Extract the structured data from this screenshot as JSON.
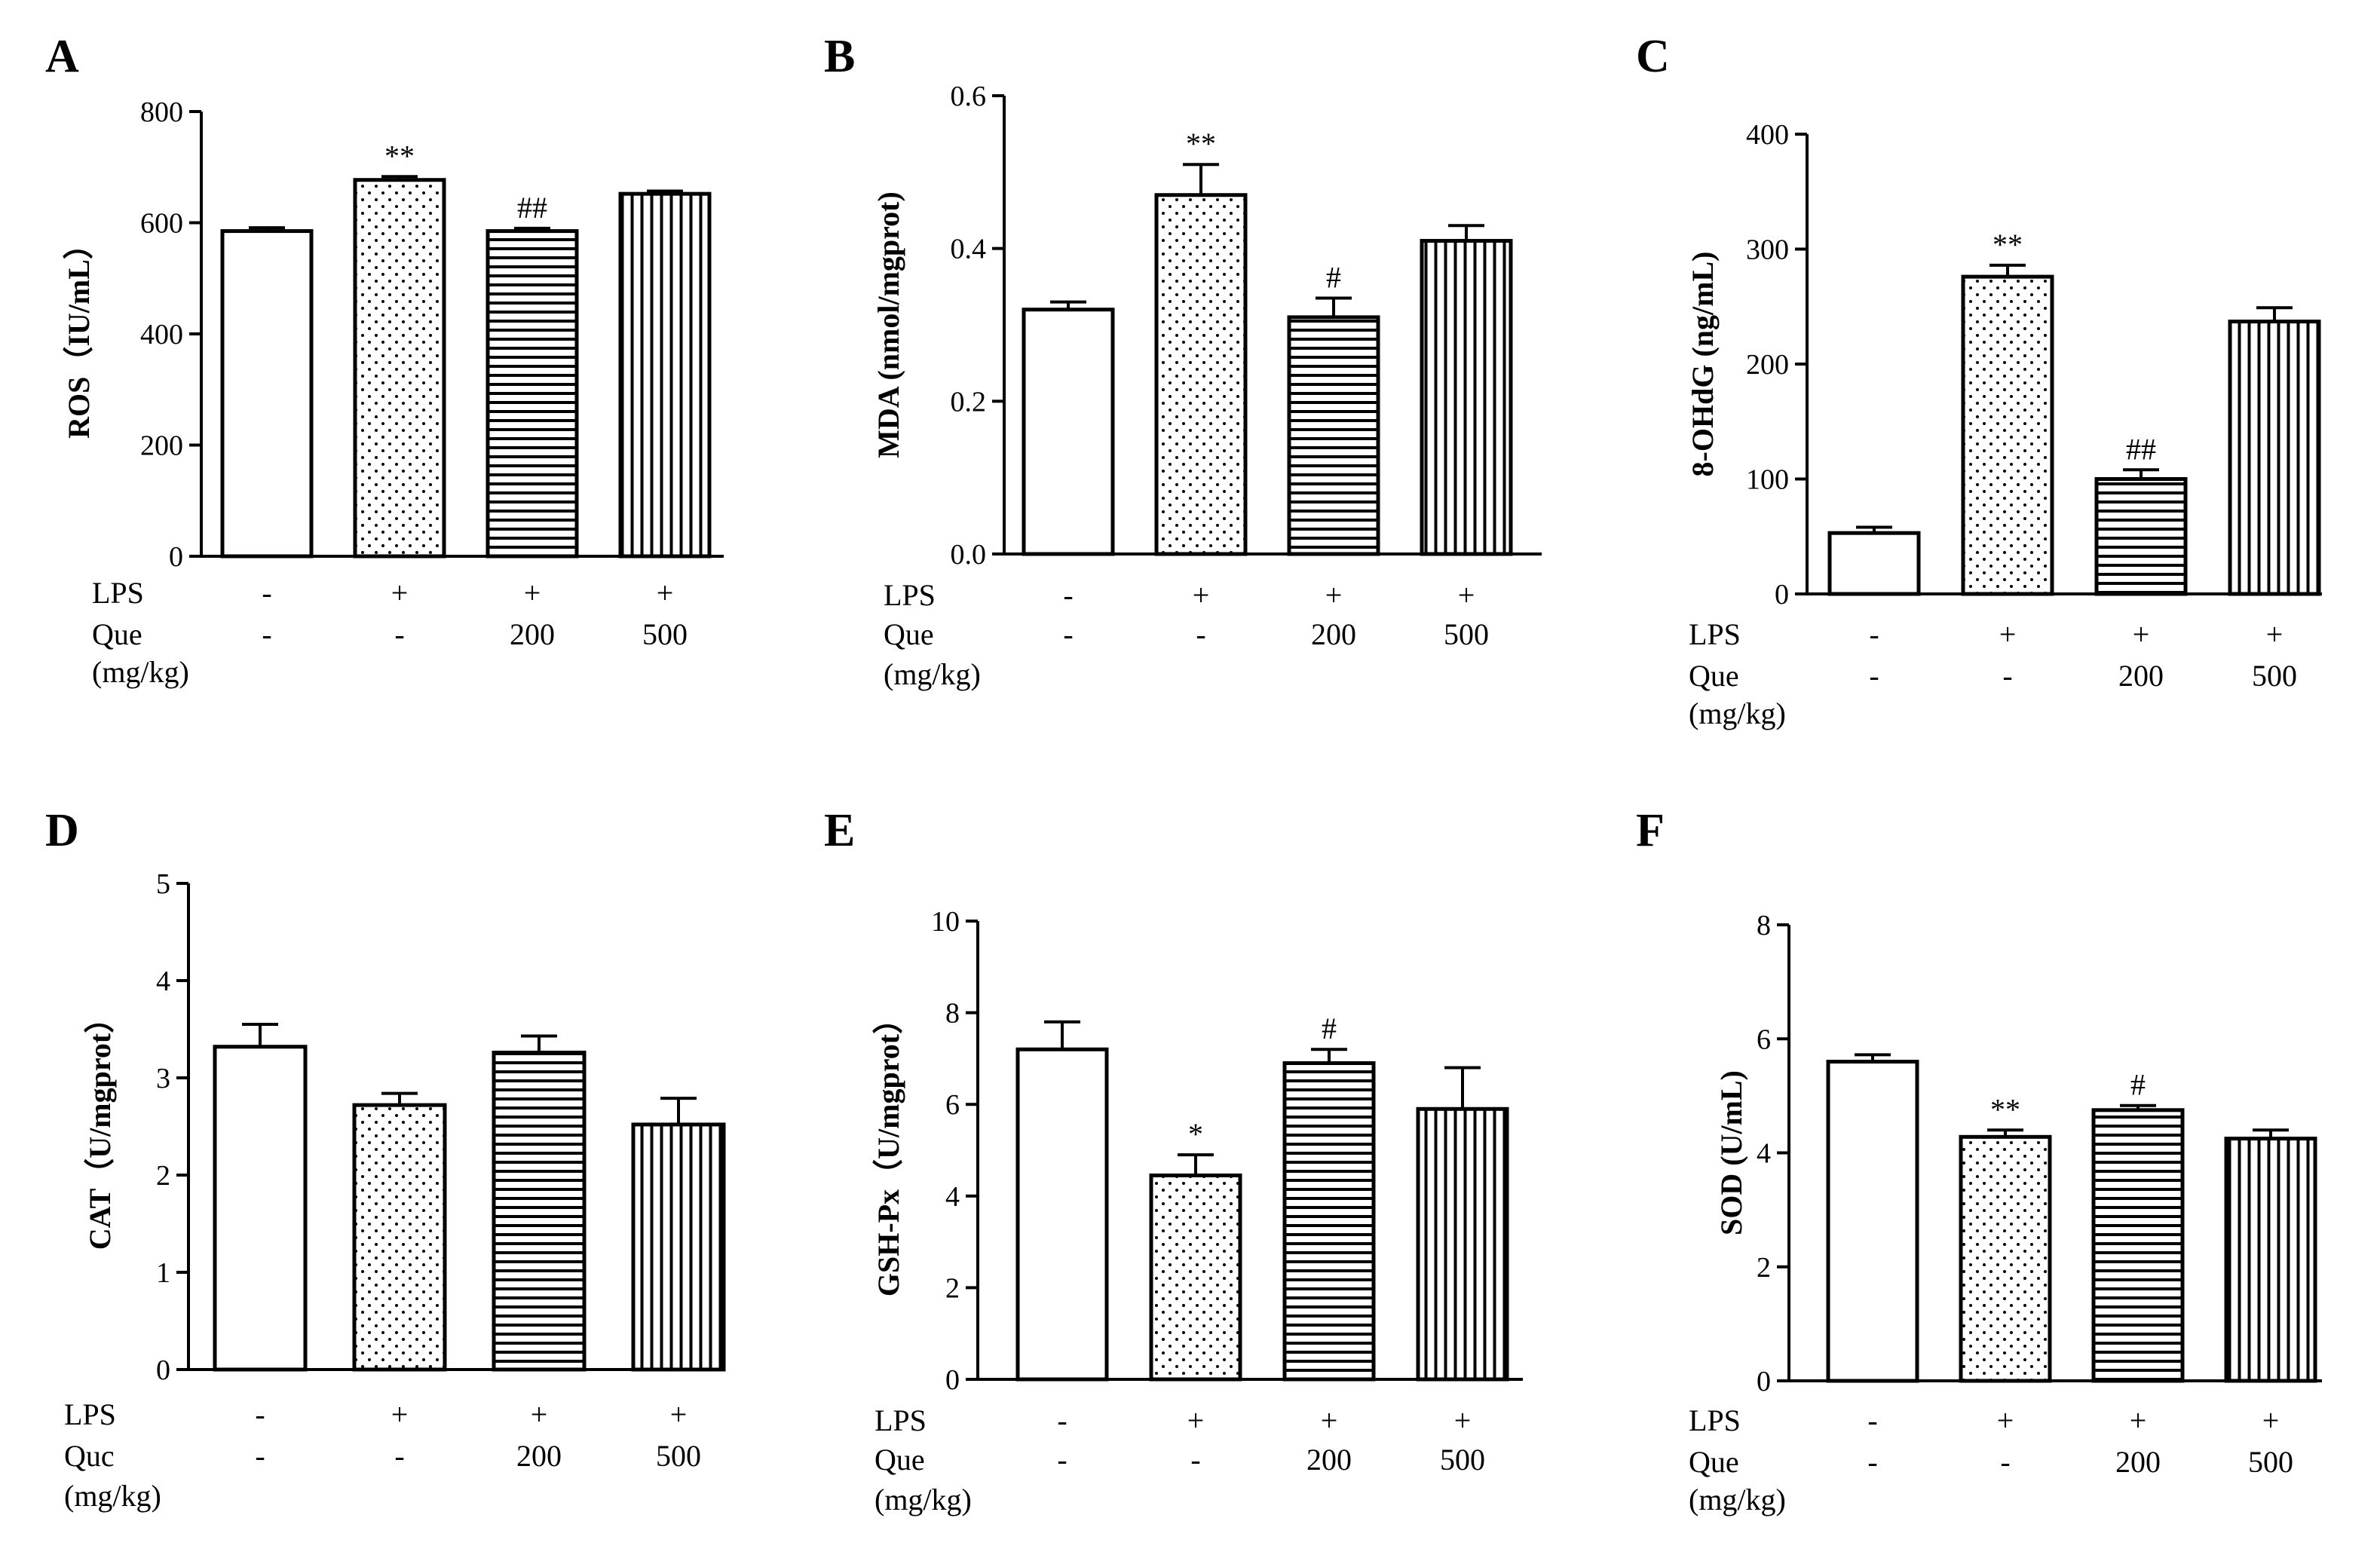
{
  "colors": {
    "ink": "#000000",
    "background": "#ffffff"
  },
  "patterns": [
    "blank",
    "dots",
    "horizontal-lines",
    "vertical-lines"
  ],
  "chart_data": [
    {
      "panel": "A",
      "type": "bar",
      "ylabel": "ROS（IU/mL）",
      "ylim": [
        0,
        800
      ],
      "yticks": [
        "0",
        "200",
        "400",
        "600",
        "800"
      ],
      "ytick_values": [
        0,
        200,
        400,
        600,
        800
      ],
      "row_labels": [
        "LPS",
        "Que",
        "(mg/kg)"
      ],
      "categories": [
        {
          "lps": "-",
          "que": "-",
          "value": 585,
          "error": 6,
          "sig": ""
        },
        {
          "lps": "+",
          "que": "-",
          "value": 677,
          "error": 6,
          "sig": "**"
        },
        {
          "lps": "+",
          "que": "200",
          "value": 585,
          "error": 5,
          "sig": "##"
        },
        {
          "lps": "+",
          "que": "500",
          "value": 652,
          "error": 5,
          "sig": ""
        }
      ]
    },
    {
      "panel": "B",
      "type": "bar",
      "ylabel": "MDA (nmol/mgprot)",
      "ylim": [
        0,
        0.6
      ],
      "yticks": [
        "0.0",
        "0.2",
        "0.4",
        "0.6"
      ],
      "ytick_values": [
        0,
        0.2,
        0.4,
        0.6
      ],
      "row_labels": [
        "LPS",
        "Que",
        "(mg/kg)"
      ],
      "categories": [
        {
          "lps": "-",
          "que": "-",
          "value": 0.32,
          "error": 0.01,
          "sig": ""
        },
        {
          "lps": "+",
          "que": "-",
          "value": 0.47,
          "error": 0.04,
          "sig": "**"
        },
        {
          "lps": "+",
          "que": "200",
          "value": 0.31,
          "error": 0.025,
          "sig": "#"
        },
        {
          "lps": "+",
          "que": "500",
          "value": 0.41,
          "error": 0.02,
          "sig": ""
        }
      ]
    },
    {
      "panel": "C",
      "type": "bar",
      "ylabel": "8-OHdG (ng/mL)",
      "ylim": [
        0,
        400
      ],
      "yticks": [
        "0",
        "100",
        "200",
        "300",
        "400"
      ],
      "ytick_values": [
        0,
        100,
        200,
        300,
        400
      ],
      "row_labels": [
        "LPS",
        "Que",
        "(mg/kg)"
      ],
      "categories": [
        {
          "lps": "-",
          "que": "-",
          "value": 53,
          "error": 5,
          "sig": ""
        },
        {
          "lps": "+",
          "que": "-",
          "value": 276,
          "error": 10,
          "sig": "**"
        },
        {
          "lps": "+",
          "que": "200",
          "value": 100,
          "error": 8,
          "sig": "##"
        },
        {
          "lps": "+",
          "que": "500",
          "value": 237,
          "error": 12,
          "sig": ""
        }
      ]
    },
    {
      "panel": "D",
      "type": "bar",
      "ylabel": "CAT（U/mgprot）",
      "ylim": [
        0,
        5
      ],
      "yticks": [
        "0",
        "1",
        "2",
        "3",
        "4",
        "5"
      ],
      "ytick_values": [
        0,
        1,
        2,
        3,
        4,
        5
      ],
      "row_labels": [
        "LPS",
        "Quc",
        "(mg/kg)"
      ],
      "categories": [
        {
          "lps": "-",
          "que": "-",
          "value": 3.32,
          "error": 0.23,
          "sig": ""
        },
        {
          "lps": "+",
          "que": "-",
          "value": 2.72,
          "error": 0.12,
          "sig": ""
        },
        {
          "lps": "+",
          "que": "200",
          "value": 3.26,
          "error": 0.17,
          "sig": ""
        },
        {
          "lps": "+",
          "que": "500",
          "value": 2.52,
          "error": 0.27,
          "sig": ""
        }
      ]
    },
    {
      "panel": "E",
      "type": "bar",
      "ylabel": "GSH-Px（U/mgprot）",
      "ylim": [
        0,
        10
      ],
      "yticks": [
        "0",
        "2",
        "4",
        "6",
        "8",
        "10"
      ],
      "ytick_values": [
        0,
        2,
        4,
        6,
        8,
        10
      ],
      "row_labels": [
        "LPS",
        "Que",
        "(mg/kg)"
      ],
      "categories": [
        {
          "lps": "-",
          "que": "-",
          "value": 7.2,
          "error": 0.6,
          "sig": ""
        },
        {
          "lps": "+",
          "que": "-",
          "value": 4.45,
          "error": 0.45,
          "sig": "*"
        },
        {
          "lps": "+",
          "que": "200",
          "value": 6.9,
          "error": 0.3,
          "sig": "#"
        },
        {
          "lps": "+",
          "que": "500",
          "value": 5.9,
          "error": 0.9,
          "sig": ""
        }
      ]
    },
    {
      "panel": "F",
      "type": "bar",
      "ylabel": "SOD (U/mL)",
      "ylim": [
        0,
        8
      ],
      "yticks": [
        "0",
        "2",
        "4",
        "6",
        "8"
      ],
      "ytick_values": [
        0,
        2,
        4,
        6,
        8
      ],
      "row_labels": [
        "LPS",
        "Que",
        "(mg/kg)"
      ],
      "categories": [
        {
          "lps": "-",
          "que": "-",
          "value": 5.6,
          "error": 0.12,
          "sig": ""
        },
        {
          "lps": "+",
          "que": "-",
          "value": 4.28,
          "error": 0.12,
          "sig": "**"
        },
        {
          "lps": "+",
          "que": "200",
          "value": 4.75,
          "error": 0.08,
          "sig": "#"
        },
        {
          "lps": "+",
          "que": "500",
          "value": 4.25,
          "error": 0.15,
          "sig": ""
        }
      ]
    }
  ]
}
